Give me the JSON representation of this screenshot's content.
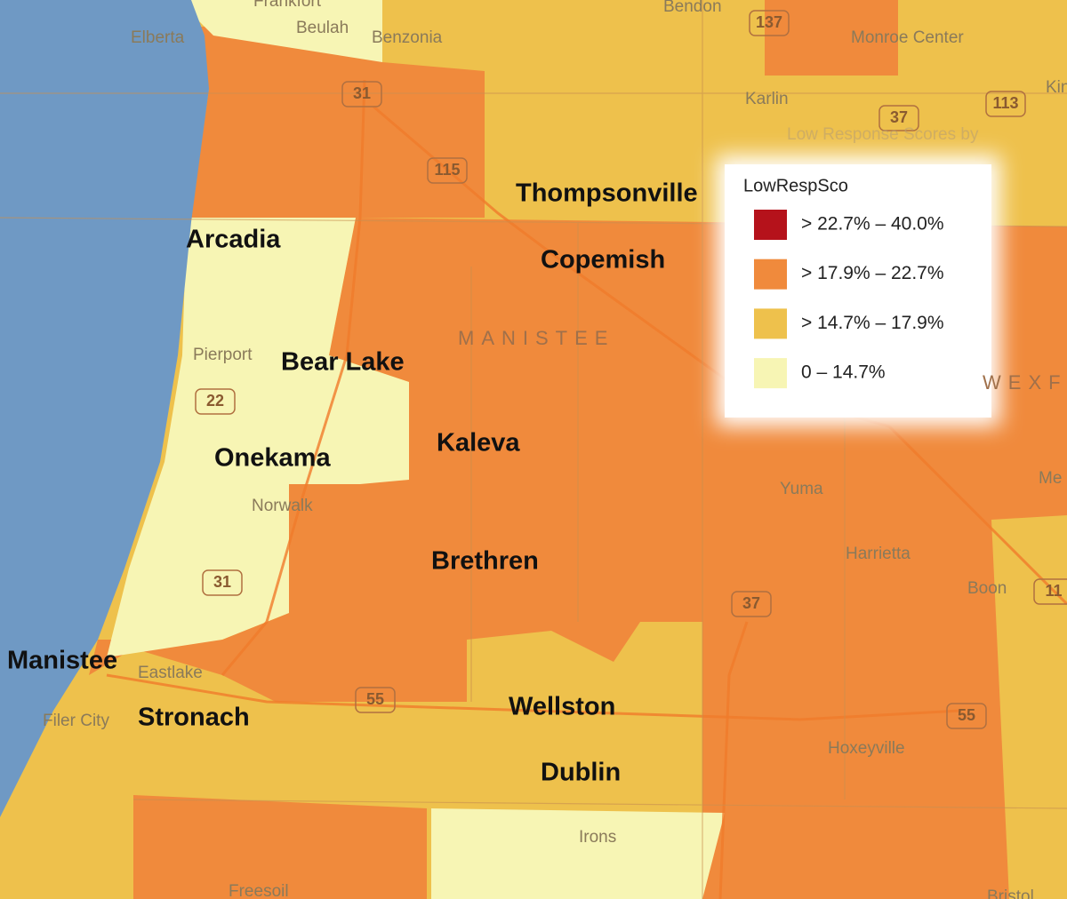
{
  "legend": {
    "title": "LowRespSco",
    "items": [
      {
        "label": "> 22.7% – 40.0%",
        "color": "#b5121b"
      },
      {
        "label": "> 17.9% – 22.7%",
        "color": "#f08a3c"
      },
      {
        "label": "> 14.7% – 17.9%",
        "color": "#eec14c"
      },
      {
        "label": "0 – 14.7%",
        "color": "#f7f5b4"
      }
    ]
  },
  "water_color": "#6f99c4",
  "towns": [
    "Thompsonville",
    "Copemish",
    "Arcadia",
    "Bear Lake",
    "Onekama",
    "Kaleva",
    "Brethren",
    "Manistee",
    "Stronach",
    "Wellston",
    "Dublin"
  ],
  "places": [
    "Frankfort",
    "Elberta",
    "Beulah",
    "Benzonia",
    "Bendon",
    "Monroe Center",
    "Karlin",
    "Pierport",
    "Norwalk",
    "Eastlake",
    "Filer City",
    "Yuma",
    "Harrietta",
    "Boon",
    "Hoxeyville",
    "Irons",
    "Freesoil",
    "Bristol",
    "Kin",
    "Me"
  ],
  "counties": [
    "MANISTEE",
    "WEXF"
  ],
  "faint_note": "Low Response Scores by",
  "routes": [
    "137",
    "31",
    "115",
    "113",
    "37",
    "22",
    "31",
    "37",
    "55",
    "55",
    "11"
  ]
}
